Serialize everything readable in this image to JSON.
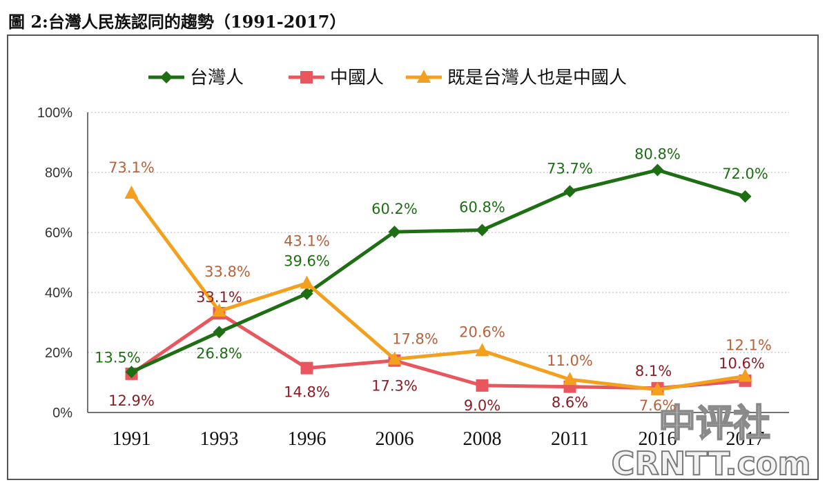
{
  "title": "圖 2:台灣人民族認同的趨勢（1991-2017）",
  "colors": {
    "taiwanese": "#1e6e14",
    "chinese": "#e8575d",
    "both": "#f2a01e",
    "label_taiwanese": "#1e6e14",
    "label_chinese": "#8c1c24",
    "label_both": "#b8623a",
    "grid": "#b4b4b4",
    "axis": "#444444"
  },
  "chart_data": {
    "type": "line",
    "categories": [
      "1991",
      "1993",
      "1996",
      "2006",
      "2008",
      "2011",
      "2016",
      "2017"
    ],
    "ylim": [
      0,
      100
    ],
    "yticks": [
      "0%",
      "20%",
      "40%",
      "60%",
      "80%",
      "100%"
    ],
    "grid": "horizontal dotted",
    "legend_position": "top",
    "series": [
      {
        "key": "taiwanese",
        "name": "台灣人",
        "marker": "diamond",
        "values": [
          13.5,
          26.8,
          39.6,
          60.2,
          60.8,
          73.7,
          80.8,
          72.0
        ],
        "labels": [
          "13.5%",
          "26.8%",
          "39.6%",
          "60.2%",
          "60.8%",
          "73.7%",
          "80.8%",
          "72.0%"
        ]
      },
      {
        "key": "chinese",
        "name": "中國人",
        "marker": "square",
        "values": [
          12.9,
          33.1,
          14.8,
          17.3,
          9.0,
          8.6,
          8.1,
          10.6
        ],
        "labels": [
          "12.9%",
          "33.1%",
          "14.8%",
          "17.3%",
          "9.0%",
          "8.6%",
          "8.1%",
          "10.6%"
        ]
      },
      {
        "key": "both",
        "name": "既是台灣人也是中國人",
        "marker": "triangle",
        "values": [
          73.1,
          33.8,
          43.1,
          17.8,
          20.6,
          11.0,
          7.6,
          12.1
        ],
        "labels": [
          "73.1%",
          "33.8%",
          "43.1%",
          "17.8%",
          "20.6%",
          "11.0%",
          "7.6%",
          "12.1%"
        ]
      }
    ]
  },
  "watermark": {
    "text_cn": "中评社",
    "text_en": "CRNTT.com"
  }
}
